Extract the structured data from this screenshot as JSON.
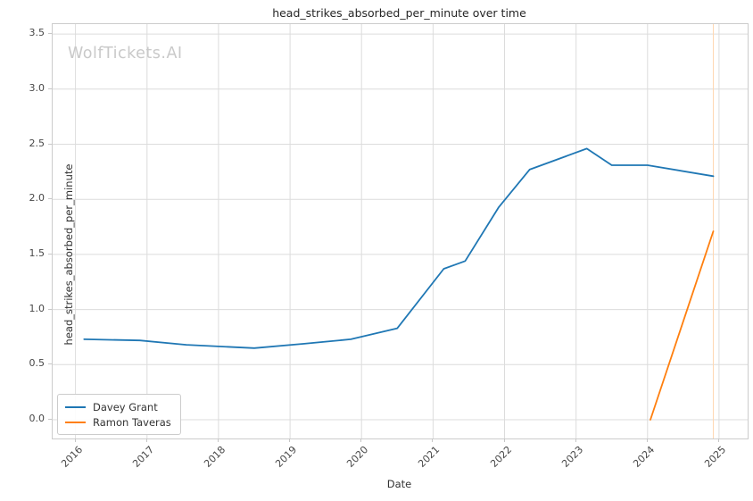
{
  "figure": {
    "title": "head_strikes_absorbed_per_minute over time",
    "watermark": "WolfTickets.AI",
    "xlabel": "Date",
    "ylabel": "head_strikes_absorbed_per_minute"
  },
  "legend": {
    "items": [
      {
        "label": "Davey Grant",
        "color": "#1f77b4"
      },
      {
        "label": "Ramon Taveras",
        "color": "#ff7f0e"
      }
    ]
  },
  "chart_data": {
    "type": "line",
    "title": "head_strikes_absorbed_per_minute over time",
    "xlabel": "Date",
    "ylabel": "head_strikes_absorbed_per_minute",
    "xlim": [
      2015.68,
      2025.4
    ],
    "ylim": [
      -0.17,
      3.59
    ],
    "grid": true,
    "legend_position": "lower left",
    "x_ticks": [
      {
        "value": 2016,
        "label": "2016"
      },
      {
        "value": 2017,
        "label": "2017"
      },
      {
        "value": 2018,
        "label": "2018"
      },
      {
        "value": 2019,
        "label": "2019"
      },
      {
        "value": 2020,
        "label": "2020"
      },
      {
        "value": 2021,
        "label": "2021"
      },
      {
        "value": 2022,
        "label": "2022"
      },
      {
        "value": 2023,
        "label": "2023"
      },
      {
        "value": 2024,
        "label": "2024"
      },
      {
        "value": 2025,
        "label": "2025"
      }
    ],
    "y_ticks": [
      {
        "value": 0.0,
        "label": "0.0"
      },
      {
        "value": 0.5,
        "label": "0.5"
      },
      {
        "value": 1.0,
        "label": "1.0"
      },
      {
        "value": 1.5,
        "label": "1.5"
      },
      {
        "value": 2.0,
        "label": "2.0"
      },
      {
        "value": 2.5,
        "label": "2.5"
      },
      {
        "value": 3.0,
        "label": "3.0"
      },
      {
        "value": 3.5,
        "label": "3.5"
      }
    ],
    "series": [
      {
        "name": "Davey Grant",
        "color": "#1f77b4",
        "x": [
          2016.12,
          2016.9,
          2017.55,
          2018.5,
          2019.2,
          2019.85,
          2020.5,
          2021.15,
          2021.45,
          2021.92,
          2022.35,
          2023.15,
          2023.5,
          2024.0,
          2024.92
        ],
        "y": [
          0.73,
          0.72,
          0.68,
          0.65,
          0.69,
          0.73,
          0.83,
          1.37,
          1.44,
          1.93,
          2.27,
          2.46,
          2.31,
          2.31,
          2.21
        ]
      },
      {
        "name": "Ramon Taveras",
        "color": "#ff7f0e",
        "x": [
          2024.04,
          2024.92
        ],
        "y": [
          0.0,
          1.71
        ]
      }
    ],
    "event_line": {
      "x": 2024.92,
      "color": "#ffd8b2"
    }
  }
}
